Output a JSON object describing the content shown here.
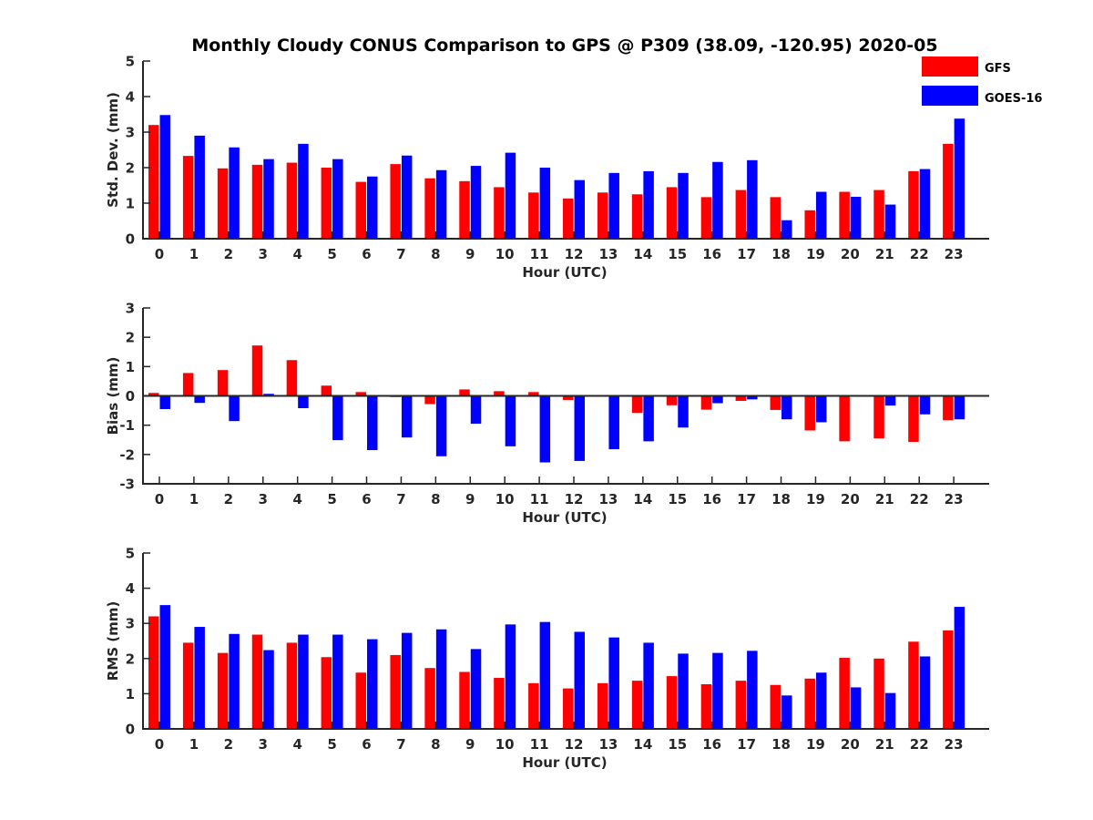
{
  "title": "Monthly Cloudy CONUS Comparison to GPS @ P309 (38.09, -120.95) 2020-05",
  "legend": [
    {
      "name": "GFS",
      "color": "#ff0000"
    },
    {
      "name": "GOES-16",
      "color": "#0000ff"
    }
  ],
  "chart_data": [
    {
      "type": "bar",
      "title": "Monthly Cloudy CONUS Comparison to GPS @ P309 (38.09, -120.95) 2020-05",
      "xlabel": "Hour (UTC)",
      "ylabel": "Std. Dev. (mm)",
      "ylim": [
        0,
        5
      ],
      "yticks": [
        0,
        1,
        2,
        3,
        4,
        5
      ],
      "categories": [
        "0",
        "1",
        "2",
        "3",
        "4",
        "5",
        "6",
        "7",
        "8",
        "9",
        "10",
        "11",
        "12",
        "13",
        "14",
        "15",
        "16",
        "17",
        "18",
        "19",
        "20",
        "21",
        "22",
        "23"
      ],
      "series": [
        {
          "name": "GFS",
          "color": "#ff0000",
          "values": [
            3.2,
            2.33,
            1.98,
            2.08,
            2.14,
            2.0,
            1.6,
            2.1,
            1.7,
            1.62,
            1.45,
            1.3,
            1.13,
            1.3,
            1.25,
            1.45,
            1.17,
            1.37,
            1.17,
            0.8,
            1.32,
            1.37,
            1.9,
            2.67
          ]
        },
        {
          "name": "GOES-16",
          "color": "#0000ff",
          "values": [
            3.48,
            2.9,
            2.57,
            2.24,
            2.67,
            2.24,
            1.75,
            2.34,
            1.93,
            2.05,
            2.42,
            2.0,
            1.65,
            1.85,
            1.9,
            1.85,
            2.16,
            2.21,
            0.52,
            1.32,
            1.18,
            0.96,
            1.96,
            3.38
          ]
        }
      ]
    },
    {
      "type": "bar",
      "xlabel": "Hour (UTC)",
      "ylabel": "Bias (mm)",
      "ylim": [
        -3,
        3
      ],
      "yticks": [
        -3,
        -2,
        -1,
        0,
        1,
        2,
        3
      ],
      "categories": [
        "0",
        "1",
        "2",
        "3",
        "4",
        "5",
        "6",
        "7",
        "8",
        "9",
        "10",
        "11",
        "12",
        "13",
        "14",
        "15",
        "16",
        "17",
        "18",
        "19",
        "20",
        "21",
        "22",
        "23"
      ],
      "series": [
        {
          "name": "GFS",
          "color": "#ff0000",
          "values": [
            0.1,
            0.78,
            0.88,
            1.72,
            1.22,
            0.35,
            0.13,
            -0.04,
            -0.28,
            0.22,
            0.16,
            0.13,
            -0.14,
            0.0,
            -0.58,
            -0.32,
            -0.47,
            -0.17,
            -0.48,
            -1.18,
            -1.55,
            -1.45,
            -1.57,
            -0.83
          ]
        },
        {
          "name": "GOES-16",
          "color": "#0000ff",
          "values": [
            -0.45,
            -0.24,
            -0.86,
            0.07,
            -0.42,
            -1.51,
            -1.85,
            -1.42,
            -2.06,
            -0.95,
            -1.72,
            -2.27,
            -2.22,
            -1.82,
            -1.55,
            -1.08,
            -0.25,
            -0.12,
            -0.8,
            -0.9,
            0.0,
            -0.33,
            -0.63,
            -0.8
          ]
        }
      ]
    },
    {
      "type": "bar",
      "xlabel": "Hour (UTC)",
      "ylabel": "RMS (mm)",
      "ylim": [
        0,
        5
      ],
      "yticks": [
        0,
        1,
        2,
        3,
        4,
        5
      ],
      "categories": [
        "0",
        "1",
        "2",
        "3",
        "4",
        "5",
        "6",
        "7",
        "8",
        "9",
        "10",
        "11",
        "12",
        "13",
        "14",
        "15",
        "16",
        "17",
        "18",
        "19",
        "20",
        "21",
        "22",
        "23"
      ],
      "series": [
        {
          "name": "GFS",
          "color": "#ff0000",
          "values": [
            3.2,
            2.45,
            2.16,
            2.68,
            2.45,
            2.04,
            1.6,
            2.1,
            1.73,
            1.62,
            1.45,
            1.3,
            1.15,
            1.3,
            1.37,
            1.5,
            1.27,
            1.37,
            1.25,
            1.43,
            2.02,
            2.0,
            2.48,
            2.8
          ]
        },
        {
          "name": "GOES-16",
          "color": "#0000ff",
          "values": [
            3.52,
            2.9,
            2.7,
            2.24,
            2.68,
            2.68,
            2.55,
            2.73,
            2.83,
            2.27,
            2.97,
            3.04,
            2.76,
            2.6,
            2.45,
            2.14,
            2.16,
            2.22,
            0.95,
            1.6,
            1.18,
            1.02,
            2.06,
            3.47
          ]
        }
      ]
    }
  ]
}
